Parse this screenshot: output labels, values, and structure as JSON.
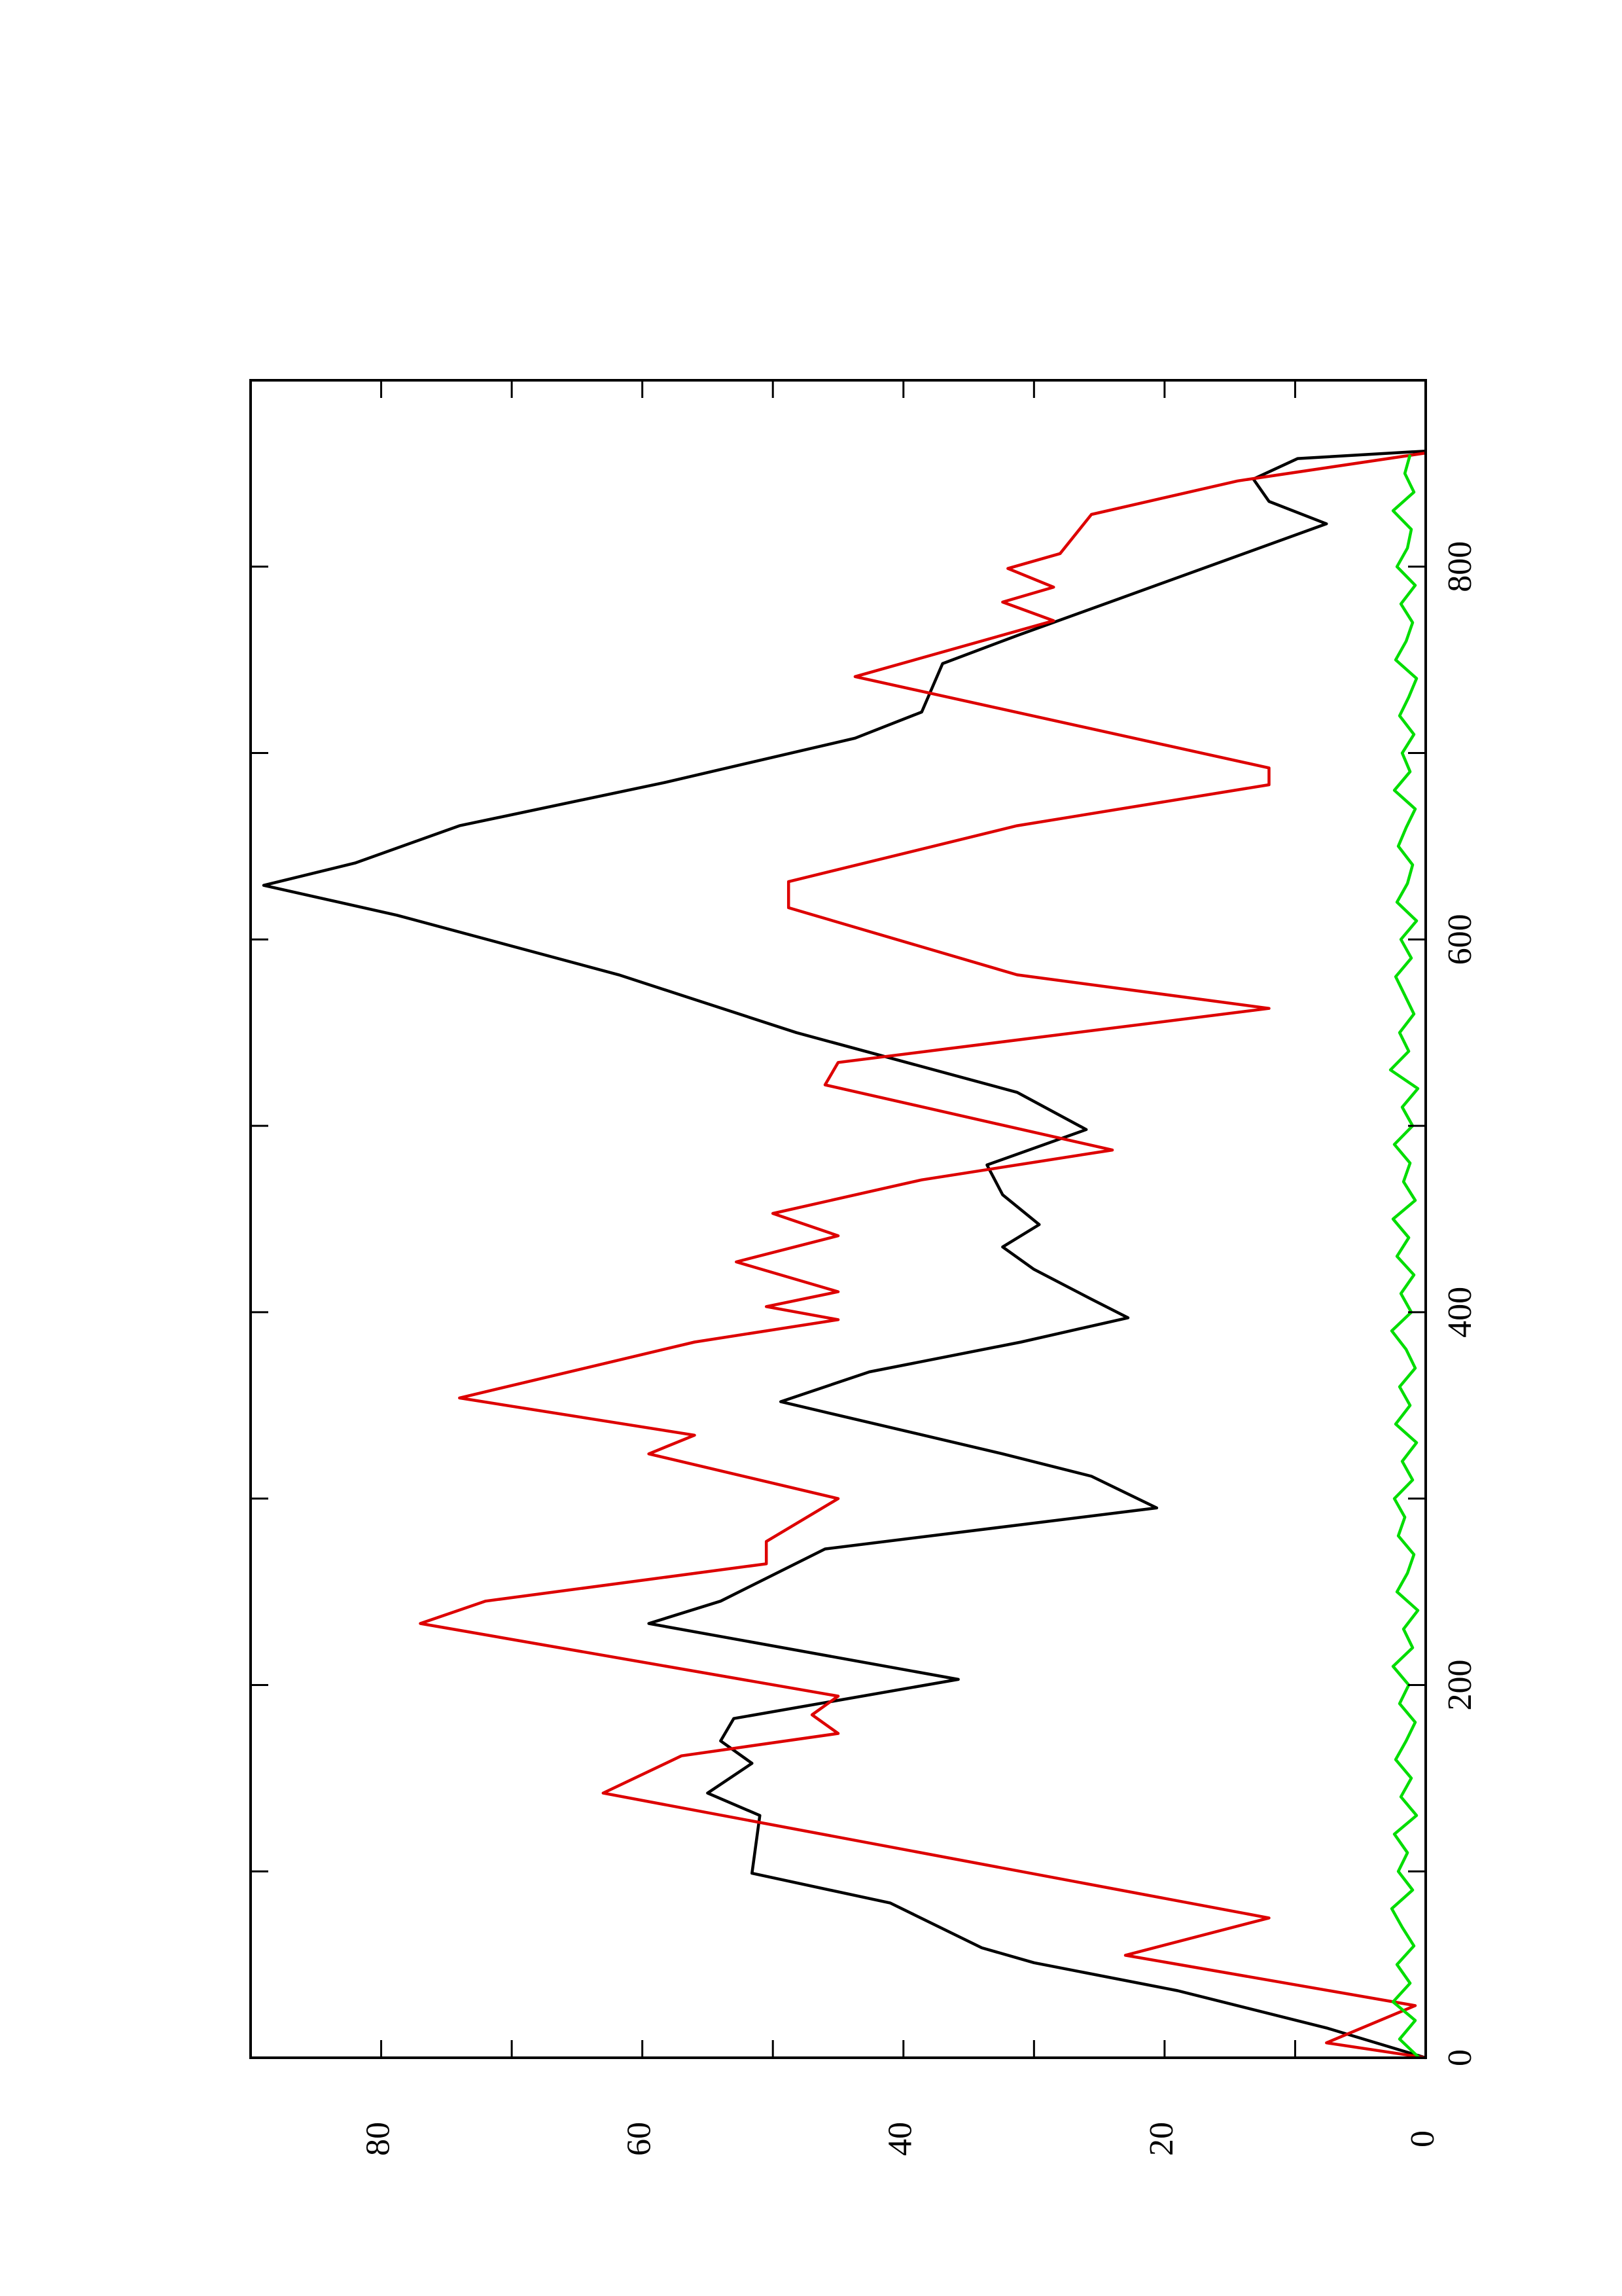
{
  "chart_data": {
    "type": "line",
    "xlim": [
      0,
      900
    ],
    "ylim": [
      0,
      90
    ],
    "xticks": [
      0,
      200,
      400,
      600,
      800
    ],
    "xminorticks": [
      100,
      300,
      500,
      700
    ],
    "yticks": [
      0,
      20,
      40,
      60,
      80
    ],
    "yminorticks": [
      10,
      30,
      50,
      70
    ],
    "series": [
      {
        "color": "#000000",
        "x": [
          0,
          16,
          36,
          51,
          59,
          83,
          99,
          130,
          142,
          158,
          170,
          182,
          203,
          233,
          245,
          273,
          295,
          312,
          324,
          352,
          368,
          384,
          397,
          407,
          423,
          435,
          447,
          463,
          479,
          498,
          518,
          550,
          581,
          613,
          629,
          641,
          661,
          684,
          708,
          722,
          748,
          763,
          783,
          803,
          823,
          835,
          847,
          858,
          862
        ],
        "values": [
          0,
          7.6,
          19,
          30,
          34,
          41,
          51.6,
          51,
          55,
          51.6,
          54,
          53,
          35.8,
          59.5,
          54,
          46,
          20.6,
          25.6,
          32.4,
          49.4,
          42.6,
          31,
          22.8,
          25.6,
          30,
          32.4,
          29.6,
          32.4,
          33.6,
          26,
          31.3,
          48.2,
          61.8,
          78.8,
          89,
          82,
          74,
          58.4,
          43.7,
          38.6,
          37,
          31.3,
          23.4,
          15.5,
          7.6,
          12,
          13.2,
          9.8,
          0
        ]
      },
      {
        "color": "#dd0000",
        "x": [
          0,
          8,
          28,
          55,
          75,
          142,
          162,
          174,
          184,
          194,
          233,
          245,
          265,
          277,
          300,
          324,
          334,
          354,
          384,
          396,
          403,
          411,
          427,
          441,
          453,
          471,
          487,
          522,
          534,
          563,
          581,
          617,
          631,
          661,
          683,
          692,
          741,
          771,
          781,
          789,
          799,
          807,
          828,
          846,
          861
        ],
        "values": [
          0,
          7.6,
          0.8,
          23,
          12,
          63,
          57,
          45,
          47,
          45,
          77,
          72,
          50.5,
          50.5,
          45,
          59.5,
          56,
          74,
          56,
          45,
          50.5,
          45,
          52.8,
          45,
          50,
          38.6,
          24,
          46,
          45,
          12,
          31.3,
          48.8,
          48.8,
          31.3,
          12,
          12,
          43.7,
          28.5,
          32.4,
          28.5,
          32,
          28,
          25.6,
          14.4,
          0
        ]
      },
      {
        "color": "#00dd00",
        "x": [
          0,
          10,
          20,
          30,
          40,
          50,
          60,
          70,
          80,
          90,
          100,
          110,
          120,
          130,
          140,
          150,
          160,
          170,
          180,
          190,
          200,
          210,
          220,
          230,
          240,
          250,
          260,
          270,
          280,
          290,
          300,
          310,
          320,
          330,
          340,
          350,
          360,
          370,
          380,
          390,
          400,
          410,
          420,
          430,
          440,
          450,
          460,
          470,
          480,
          490,
          500,
          510,
          520,
          530,
          540,
          550,
          560,
          570,
          580,
          590,
          600,
          610,
          620,
          630,
          640,
          650,
          660,
          670,
          680,
          690,
          700,
          710,
          720,
          730,
          740,
          750,
          760,
          770,
          780,
          790,
          800,
          810,
          820,
          830,
          840,
          850,
          860
        ],
        "values": [
          0.5,
          2.0,
          0.8,
          2.5,
          1.2,
          2.2,
          0.9,
          1.8,
          2.6,
          1.0,
          2.1,
          1.4,
          2.4,
          0.7,
          1.9,
          1.1,
          2.3,
          1.5,
          0.8,
          2.0,
          1.3,
          2.5,
          1.0,
          1.7,
          0.6,
          2.2,
          1.4,
          0.9,
          2.1,
          1.6,
          2.4,
          1.0,
          1.8,
          0.7,
          2.3,
          1.2,
          2.0,
          0.8,
          1.5,
          2.6,
          1.1,
          1.9,
          0.9,
          2.2,
          1.3,
          2.5,
          0.8,
          1.7,
          1.2,
          2.4,
          1.0,
          1.8,
          0.6,
          2.7,
          1.3,
          2.0,
          0.9,
          1.6,
          2.3,
          1.1,
          1.9,
          0.7,
          2.2,
          1.4,
          1.0,
          2.1,
          1.5,
          0.8,
          2.4,
          1.2,
          1.8,
          0.9,
          2.0,
          1.3,
          0.7,
          2.3,
          1.5,
          1.0,
          1.9,
          0.8,
          2.2,
          1.4,
          1.1,
          2.5,
          0.9,
          1.6,
          1.2
        ]
      }
    ]
  }
}
